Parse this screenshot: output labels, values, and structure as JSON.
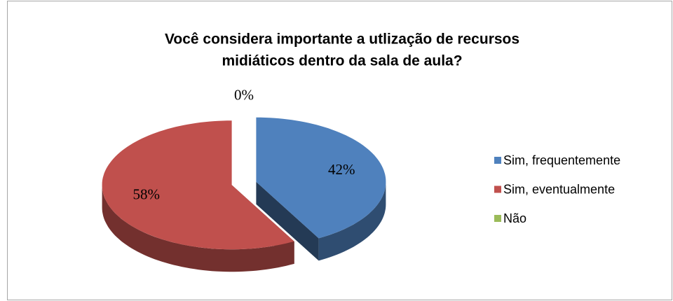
{
  "chart_data": {
    "type": "pie",
    "title": [
      "Você considera importante a utlização de recursos",
      "midiáticos dentro da sala de aula?"
    ],
    "categories": [
      "Sim, frequentemente",
      "Sim, eventualmente",
      "Não"
    ],
    "values": [
      42,
      58,
      0
    ],
    "value_labels": [
      "42%",
      "58%",
      "0%"
    ],
    "colors": [
      "#4f81bd",
      "#c0504d",
      "#9bbb59"
    ],
    "legend": "right"
  }
}
